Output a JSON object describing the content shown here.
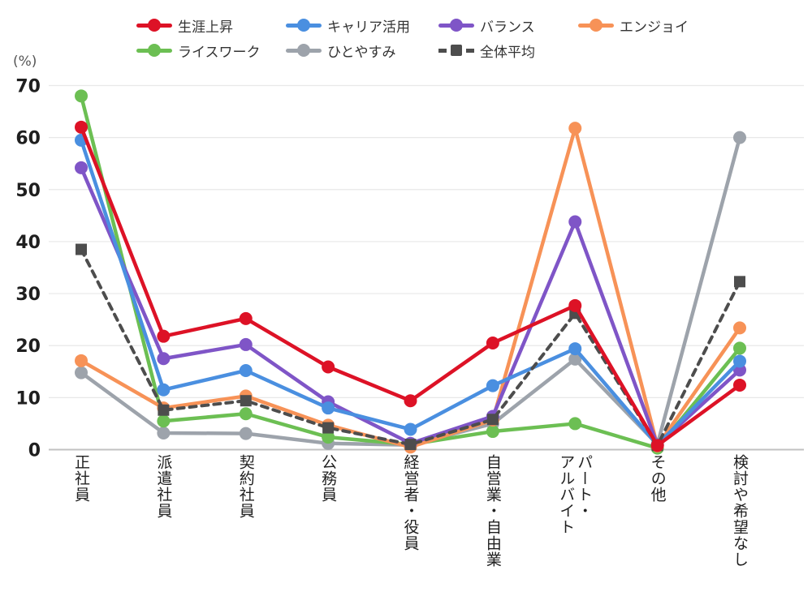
{
  "chart": {
    "percent_label": "(%)"
  },
  "chart_data": {
    "type": "line",
    "title": "",
    "xlabel": "",
    "ylabel": "(%)",
    "ylim": [
      0,
      70
    ],
    "yticks": [
      0,
      10,
      20,
      30,
      40,
      50,
      60,
      70
    ],
    "grid": true,
    "legend_position": "top",
    "categories": [
      "正社員",
      "派遣社員",
      "契約社員",
      "公務員",
      "経営者・役員",
      "自営業・自由業",
      "パート・アルバイト",
      "その他",
      "検討や希望なし"
    ],
    "category_display": [
      "正社員",
      "派遣社員",
      "契約社員",
      "公務員",
      "経営者・役員",
      "自営業・自由業",
      "パート・\nアルバイト",
      "その他",
      "検討や希望なし"
    ],
    "series": [
      {
        "name": "ひとやすみ",
        "color": "#9da3ab",
        "marker": "circle",
        "dash": false,
        "values": [
          14.8,
          3.2,
          3.1,
          1.2,
          0.9,
          5.0,
          17.4,
          1.0,
          60.0
        ]
      },
      {
        "name": "ライスワーク",
        "color": "#6cbf53",
        "marker": "circle",
        "dash": false,
        "values": [
          68.0,
          5.5,
          6.9,
          2.4,
          1.0,
          3.5,
          5.0,
          0.3,
          19.5
        ]
      },
      {
        "name": "エンジョイ",
        "color": "#f79257",
        "marker": "circle",
        "dash": false,
        "values": [
          17.1,
          8.0,
          10.3,
          4.7,
          0.5,
          5.7,
          61.8,
          0.7,
          23.4
        ]
      },
      {
        "name": "バランス",
        "color": "#7f55c7",
        "marker": "circle",
        "dash": false,
        "values": [
          54.2,
          17.5,
          20.2,
          9.2,
          1.2,
          6.4,
          43.8,
          0.9,
          15.3
        ]
      },
      {
        "name": "キャリア活用",
        "color": "#4a8fe0",
        "marker": "circle",
        "dash": false,
        "values": [
          59.5,
          11.5,
          15.2,
          8.0,
          3.9,
          12.3,
          19.4,
          0.9,
          17.0
        ]
      },
      {
        "name": "全体平均",
        "color": "#4d4d4d",
        "marker": "square",
        "dash": true,
        "values": [
          38.5,
          7.6,
          9.4,
          4.2,
          1.0,
          5.8,
          26.2,
          0.8,
          32.3
        ]
      },
      {
        "name": "生涯上昇",
        "color": "#dd1226",
        "marker": "circle",
        "dash": false,
        "values": [
          62.0,
          21.8,
          25.2,
          15.9,
          9.4,
          20.5,
          27.7,
          0.8,
          12.4
        ]
      }
    ],
    "legend_order": [
      "生涯上昇",
      "キャリア活用",
      "バランス",
      "エンジョイ",
      "ライスワーク",
      "ひとやすみ",
      "全体平均"
    ]
  }
}
